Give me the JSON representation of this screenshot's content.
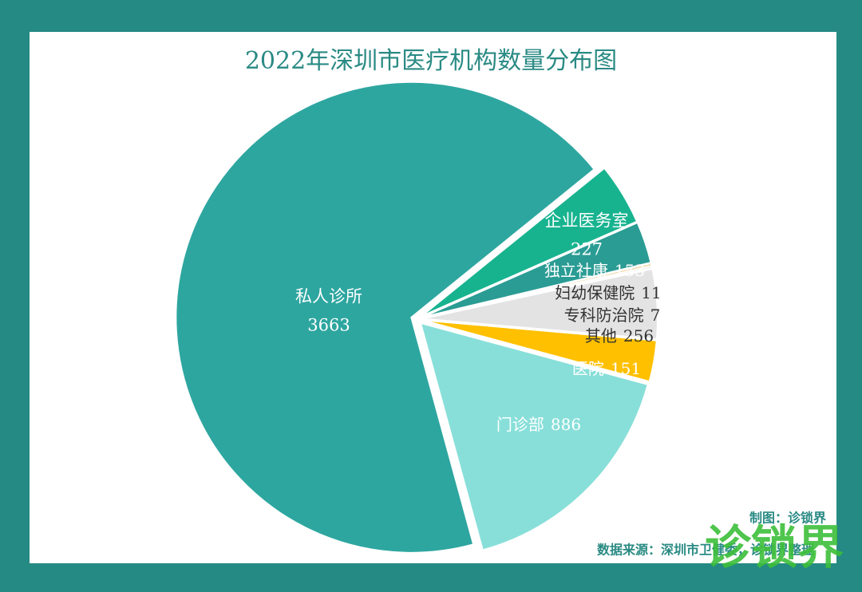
{
  "chart_data": {
    "type": "pie",
    "title": "2022年深圳市医疗机构数量分布图",
    "categories": [
      "企业医务室",
      "独立社康",
      "妇幼保健院",
      "专科防治院",
      "其他",
      "医院",
      "门诊部",
      "私人诊所"
    ],
    "values": [
      227,
      153,
      11,
      7,
      256,
      151,
      886,
      3663
    ],
    "colors": [
      "#17b38f",
      "#2a9c94",
      "#efdcae",
      "#d9d9d9",
      "#e3e3e3",
      "#ffc000",
      "#88dfd9",
      "#2ea6a0"
    ]
  },
  "credits": {
    "author": "制图：诊锁界",
    "source": "数据来源：深圳市卫健委，诊锁界整理"
  },
  "logo": "诊锁界"
}
